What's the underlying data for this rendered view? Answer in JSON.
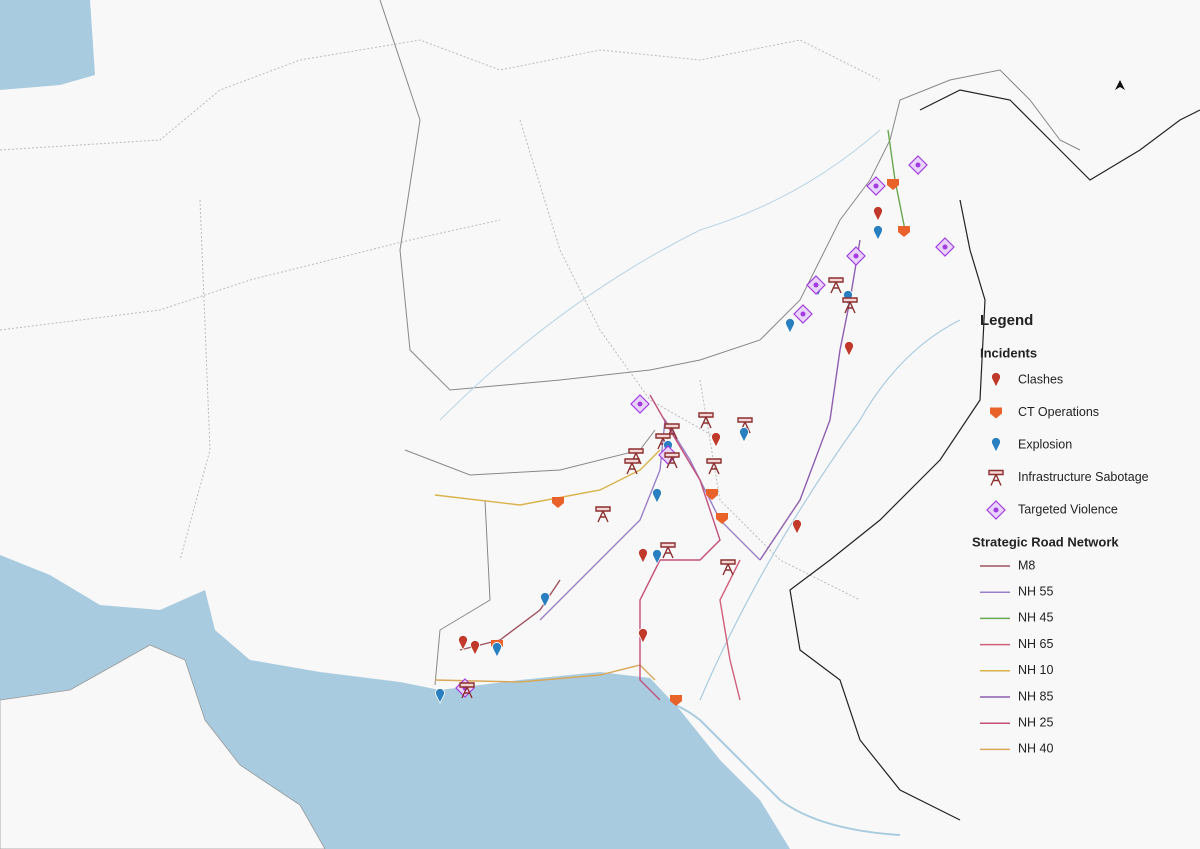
{
  "legend": {
    "title": "Legend",
    "incidents": {
      "heading": "Incidents",
      "items": [
        {
          "name": "Clashes",
          "color": "#c0392b"
        },
        {
          "name": "CT Operations",
          "color": "#e8622a"
        },
        {
          "name": "Explosion",
          "color": "#2a7fc0"
        },
        {
          "name": "Infrastructure Sabotage",
          "color": "#8b2f2f"
        },
        {
          "name": "Targeted Violence",
          "color": "#a23ce0"
        }
      ]
    },
    "roads": {
      "heading": "Strategic Road Network",
      "items": [
        {
          "name": "M8",
          "color": "#a0525e"
        },
        {
          "name": "NH 55",
          "color": "#9a7fc8"
        },
        {
          "name": "NH 45",
          "color": "#6aa84f"
        },
        {
          "name": "NH 65",
          "color": "#d0607a"
        },
        {
          "name": "NH 10",
          "color": "#d9b24a"
        },
        {
          "name": "NH 85",
          "color": "#8e5fb0"
        },
        {
          "name": "NH 25",
          "color": "#c2507a"
        },
        {
          "name": "NH 40",
          "color": "#d8a85a"
        }
      ]
    }
  }
}
